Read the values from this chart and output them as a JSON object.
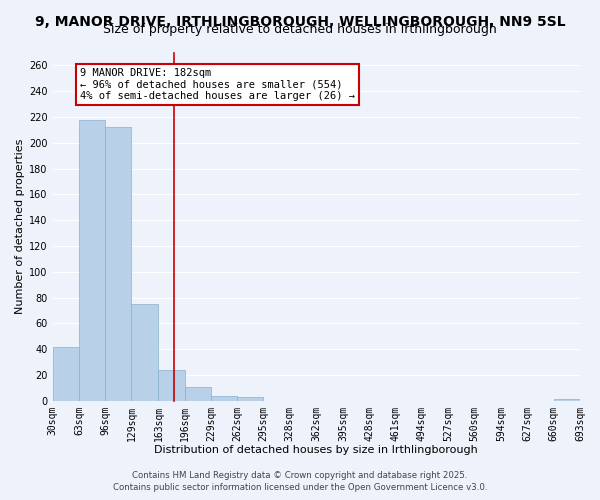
{
  "title": "9, MANOR DRIVE, IRTHLINGBOROUGH, WELLINGBOROUGH, NN9 5SL",
  "subtitle": "Size of property relative to detached houses in Irthlingborough",
  "xlabel": "Distribution of detached houses by size in Irthlingborough",
  "ylabel": "Number of detached properties",
  "bar_color": "#b8d0e8",
  "bar_edge_color": "#8ab0d0",
  "bins": [
    30,
    63,
    96,
    129,
    163,
    196,
    229,
    262,
    295,
    328,
    362,
    395,
    428,
    461,
    494,
    527,
    560,
    594,
    627,
    660,
    693
  ],
  "bin_labels": [
    "30sqm",
    "63sqm",
    "96sqm",
    "129sqm",
    "163sqm",
    "196sqm",
    "229sqm",
    "262sqm",
    "295sqm",
    "328sqm",
    "362sqm",
    "395sqm",
    "428sqm",
    "461sqm",
    "494sqm",
    "527sqm",
    "560sqm",
    "594sqm",
    "627sqm",
    "660sqm",
    "693sqm"
  ],
  "values": [
    42,
    218,
    212,
    75,
    24,
    11,
    4,
    3,
    0,
    0,
    0,
    0,
    0,
    0,
    0,
    0,
    0,
    0,
    0,
    1
  ],
  "vline_x": 182,
  "vline_color": "#cc0000",
  "ylim": [
    0,
    270
  ],
  "yticks": [
    0,
    20,
    40,
    60,
    80,
    100,
    120,
    140,
    160,
    180,
    200,
    220,
    240,
    260
  ],
  "annotation_title": "9 MANOR DRIVE: 182sqm",
  "annotation_line1": "← 96% of detached houses are smaller (554)",
  "annotation_line2": "4% of semi-detached houses are larger (26) →",
  "annotation_box_color": "#ffffff",
  "annotation_box_edge": "#cc0000",
  "footer_line1": "Contains HM Land Registry data © Crown copyright and database right 2025.",
  "footer_line2": "Contains public sector information licensed under the Open Government Licence v3.0.",
  "bg_color": "#edf2fb",
  "grid_color": "#ffffff",
  "title_fontsize": 10,
  "subtitle_fontsize": 9,
  "axis_label_fontsize": 8,
  "tick_fontsize": 7,
  "annot_fontsize": 7.5,
  "footer_fontsize": 6.2
}
